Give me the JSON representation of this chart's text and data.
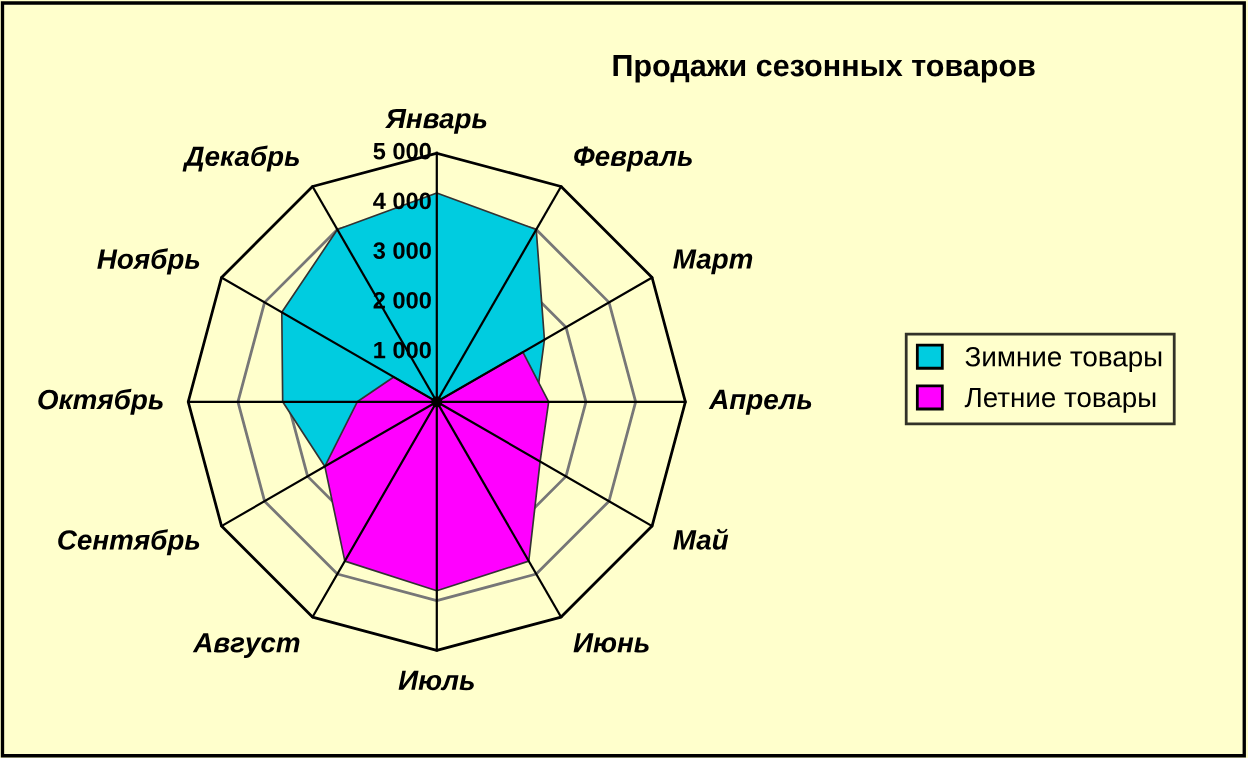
{
  "chart_data": {
    "type": "radar",
    "title": "Продажи сезонных товаров",
    "categories": [
      "Январь",
      "Февраль",
      "Март",
      "Апрель",
      "Май",
      "Июнь",
      "Июль",
      "Август",
      "Сентябрь",
      "Октябрь",
      "Ноябрь",
      "Декабрь"
    ],
    "series": [
      {
        "name": "Зимние товары",
        "color": "#00cce0",
        "values": [
          4200,
          4000,
          2500,
          2000,
          null,
          null,
          null,
          null,
          2600,
          3100,
          3600,
          4000
        ]
      },
      {
        "name": "Летние товары",
        "color": "#ff00ff",
        "values": [
          0,
          0,
          2000,
          2250,
          2400,
          3700,
          3800,
          3700,
          2600,
          1600,
          1000,
          0
        ]
      }
    ],
    "ylim": [
      0,
      5000
    ],
    "yticks": [
      {
        "value": 1000,
        "label": "1 000"
      },
      {
        "value": 2000,
        "label": "2 000"
      },
      {
        "value": 3000,
        "label": "3 000"
      },
      {
        "value": 4000,
        "label": "4 000"
      },
      {
        "value": 5000,
        "label": "5 000"
      }
    ],
    "grid": true,
    "legend": "right"
  }
}
